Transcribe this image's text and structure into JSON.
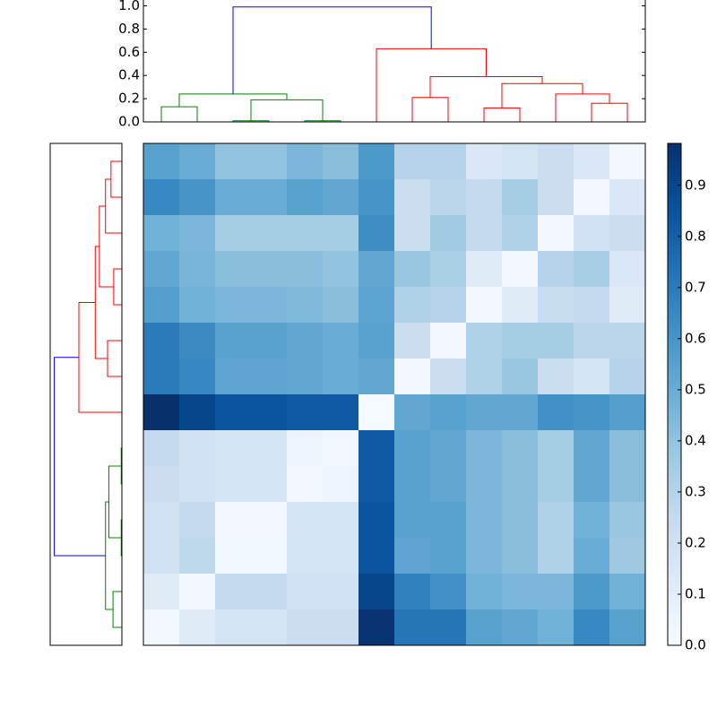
{
  "chart_data": {
    "type": "clustermap",
    "dendrogram": {
      "ylim": [
        0,
        1.05
      ],
      "yticks": [
        {
          "value": 0,
          "label": "0.0"
        },
        0.2,
        0.4,
        0.6,
        0.8,
        {
          "value": 1,
          "label": "1.0"
        }
      ],
      "links": [
        {
          "color": "#008000",
          "x": [
            0,
            0,
            1,
            1
          ],
          "y": [
            0,
            0.13,
            0.13,
            0
          ]
        },
        {
          "color": "#008000",
          "x": [
            2,
            2,
            3,
            3
          ],
          "y": [
            0,
            0.01,
            0.01,
            0
          ]
        },
        {
          "color": "#008000",
          "x": [
            4,
            4,
            5,
            5
          ],
          "y": [
            0,
            0.01,
            0.01,
            0
          ]
        },
        {
          "color": "#008000",
          "x": [
            2.5,
            2.5,
            4.5,
            4.5
          ],
          "y": [
            0.01,
            0.19,
            0.19,
            0.01
          ]
        },
        {
          "color": "#008000",
          "x": [
            0.5,
            0.5,
            3.5,
            3.5
          ],
          "y": [
            0.13,
            0.24,
            0.24,
            0.19
          ]
        },
        {
          "color": "#ff0000",
          "x": [
            7,
            7,
            8,
            8
          ],
          "y": [
            0,
            0.21,
            0.21,
            0
          ]
        },
        {
          "color": "#ff0000",
          "x": [
            9,
            9,
            10,
            10
          ],
          "y": [
            0,
            0.12,
            0.12,
            0
          ]
        },
        {
          "color": "#ff0000",
          "x": [
            12,
            12,
            13,
            13
          ],
          "y": [
            0,
            0.16,
            0.16,
            0
          ]
        },
        {
          "color": "#ff0000",
          "x": [
            11,
            11,
            12.5,
            12.5
          ],
          "y": [
            0,
            0.24,
            0.24,
            0.16
          ]
        },
        {
          "color": "#ff0000",
          "x": [
            9.5,
            9.5,
            11.75,
            11.75
          ],
          "y": [
            0.12,
            0.33,
            0.33,
            0.24
          ]
        },
        {
          "color": "#ff0000",
          "x": [
            7.5,
            7.5,
            10.625,
            10.625
          ],
          "y": [
            0.21,
            0.39,
            0.39,
            0.33
          ]
        },
        {
          "color": "#ff0000",
          "x": [
            6,
            6,
            9.0625,
            9.0625
          ],
          "y": [
            0,
            0.63,
            0.63,
            0.39
          ]
        },
        {
          "color": "#0000ff",
          "x": [
            2,
            2,
            7.53,
            7.53
          ],
          "y": [
            0.24,
            0.99,
            0.99,
            0.63
          ]
        }
      ]
    },
    "zlim": [
      0,
      0.982
    ],
    "zticks": [
      {
        "value": 0,
        "label": "0.0"
      },
      0.1,
      0.2,
      0.3,
      0.4,
      0.5,
      0.6,
      0.7,
      0.8,
      0.9
    ],
    "colorscale": [
      "#f7fbff",
      "#deebf7",
      "#c6dbef",
      "#9ecae1",
      "#6baed6",
      "#4292c6",
      "#2171b5",
      "#08519c",
      "#08306b"
    ],
    "z": [
      [
        0.55,
        0.5,
        0.4,
        0.4,
        0.45,
        0.42,
        0.58,
        0.3,
        0.3,
        0.15,
        0.18,
        0.22,
        0.15,
        0.02
      ],
      [
        0.65,
        0.6,
        0.5,
        0.5,
        0.55,
        0.52,
        0.6,
        0.22,
        0.28,
        0.25,
        0.35,
        0.22,
        0.02,
        0.15
      ],
      [
        0.48,
        0.45,
        0.35,
        0.35,
        0.35,
        0.35,
        0.63,
        0.22,
        0.36,
        0.25,
        0.32,
        0.02,
        0.2,
        0.22
      ],
      [
        0.52,
        0.46,
        0.42,
        0.42,
        0.42,
        0.4,
        0.52,
        0.38,
        0.33,
        0.12,
        0.03,
        0.3,
        0.34,
        0.15
      ],
      [
        0.56,
        0.48,
        0.45,
        0.45,
        0.44,
        0.42,
        0.54,
        0.32,
        0.3,
        0.02,
        0.12,
        0.23,
        0.25,
        0.12
      ],
      [
        0.7,
        0.64,
        0.55,
        0.55,
        0.52,
        0.5,
        0.55,
        0.22,
        0.02,
        0.32,
        0.35,
        0.35,
        0.28,
        0.28
      ],
      [
        0.7,
        0.66,
        0.53,
        0.53,
        0.52,
        0.5,
        0.52,
        0.02,
        0.22,
        0.32,
        0.38,
        0.22,
        0.18,
        0.3
      ],
      [
        0.98,
        0.9,
        0.85,
        0.85,
        0.83,
        0.83,
        0.01,
        0.52,
        0.55,
        0.52,
        0.52,
        0.62,
        0.6,
        0.56
      ],
      [
        0.25,
        0.2,
        0.18,
        0.18,
        0.05,
        0.03,
        0.83,
        0.55,
        0.52,
        0.45,
        0.42,
        0.35,
        0.52,
        0.42
      ],
      [
        0.22,
        0.2,
        0.18,
        0.18,
        0.03,
        0.05,
        0.83,
        0.55,
        0.52,
        0.45,
        0.42,
        0.35,
        0.52,
        0.42
      ],
      [
        0.2,
        0.25,
        0.03,
        0.03,
        0.17,
        0.17,
        0.85,
        0.55,
        0.55,
        0.45,
        0.42,
        0.32,
        0.48,
        0.38
      ],
      [
        0.2,
        0.27,
        0.04,
        0.04,
        0.17,
        0.17,
        0.85,
        0.53,
        0.55,
        0.45,
        0.42,
        0.32,
        0.5,
        0.37
      ],
      [
        0.12,
        0.02,
        0.25,
        0.25,
        0.2,
        0.2,
        0.9,
        0.68,
        0.62,
        0.48,
        0.45,
        0.45,
        0.58,
        0.48
      ],
      [
        0.02,
        0.12,
        0.18,
        0.18,
        0.22,
        0.22,
        0.97,
        0.72,
        0.72,
        0.55,
        0.52,
        0.48,
        0.65,
        0.55
      ]
    ]
  }
}
